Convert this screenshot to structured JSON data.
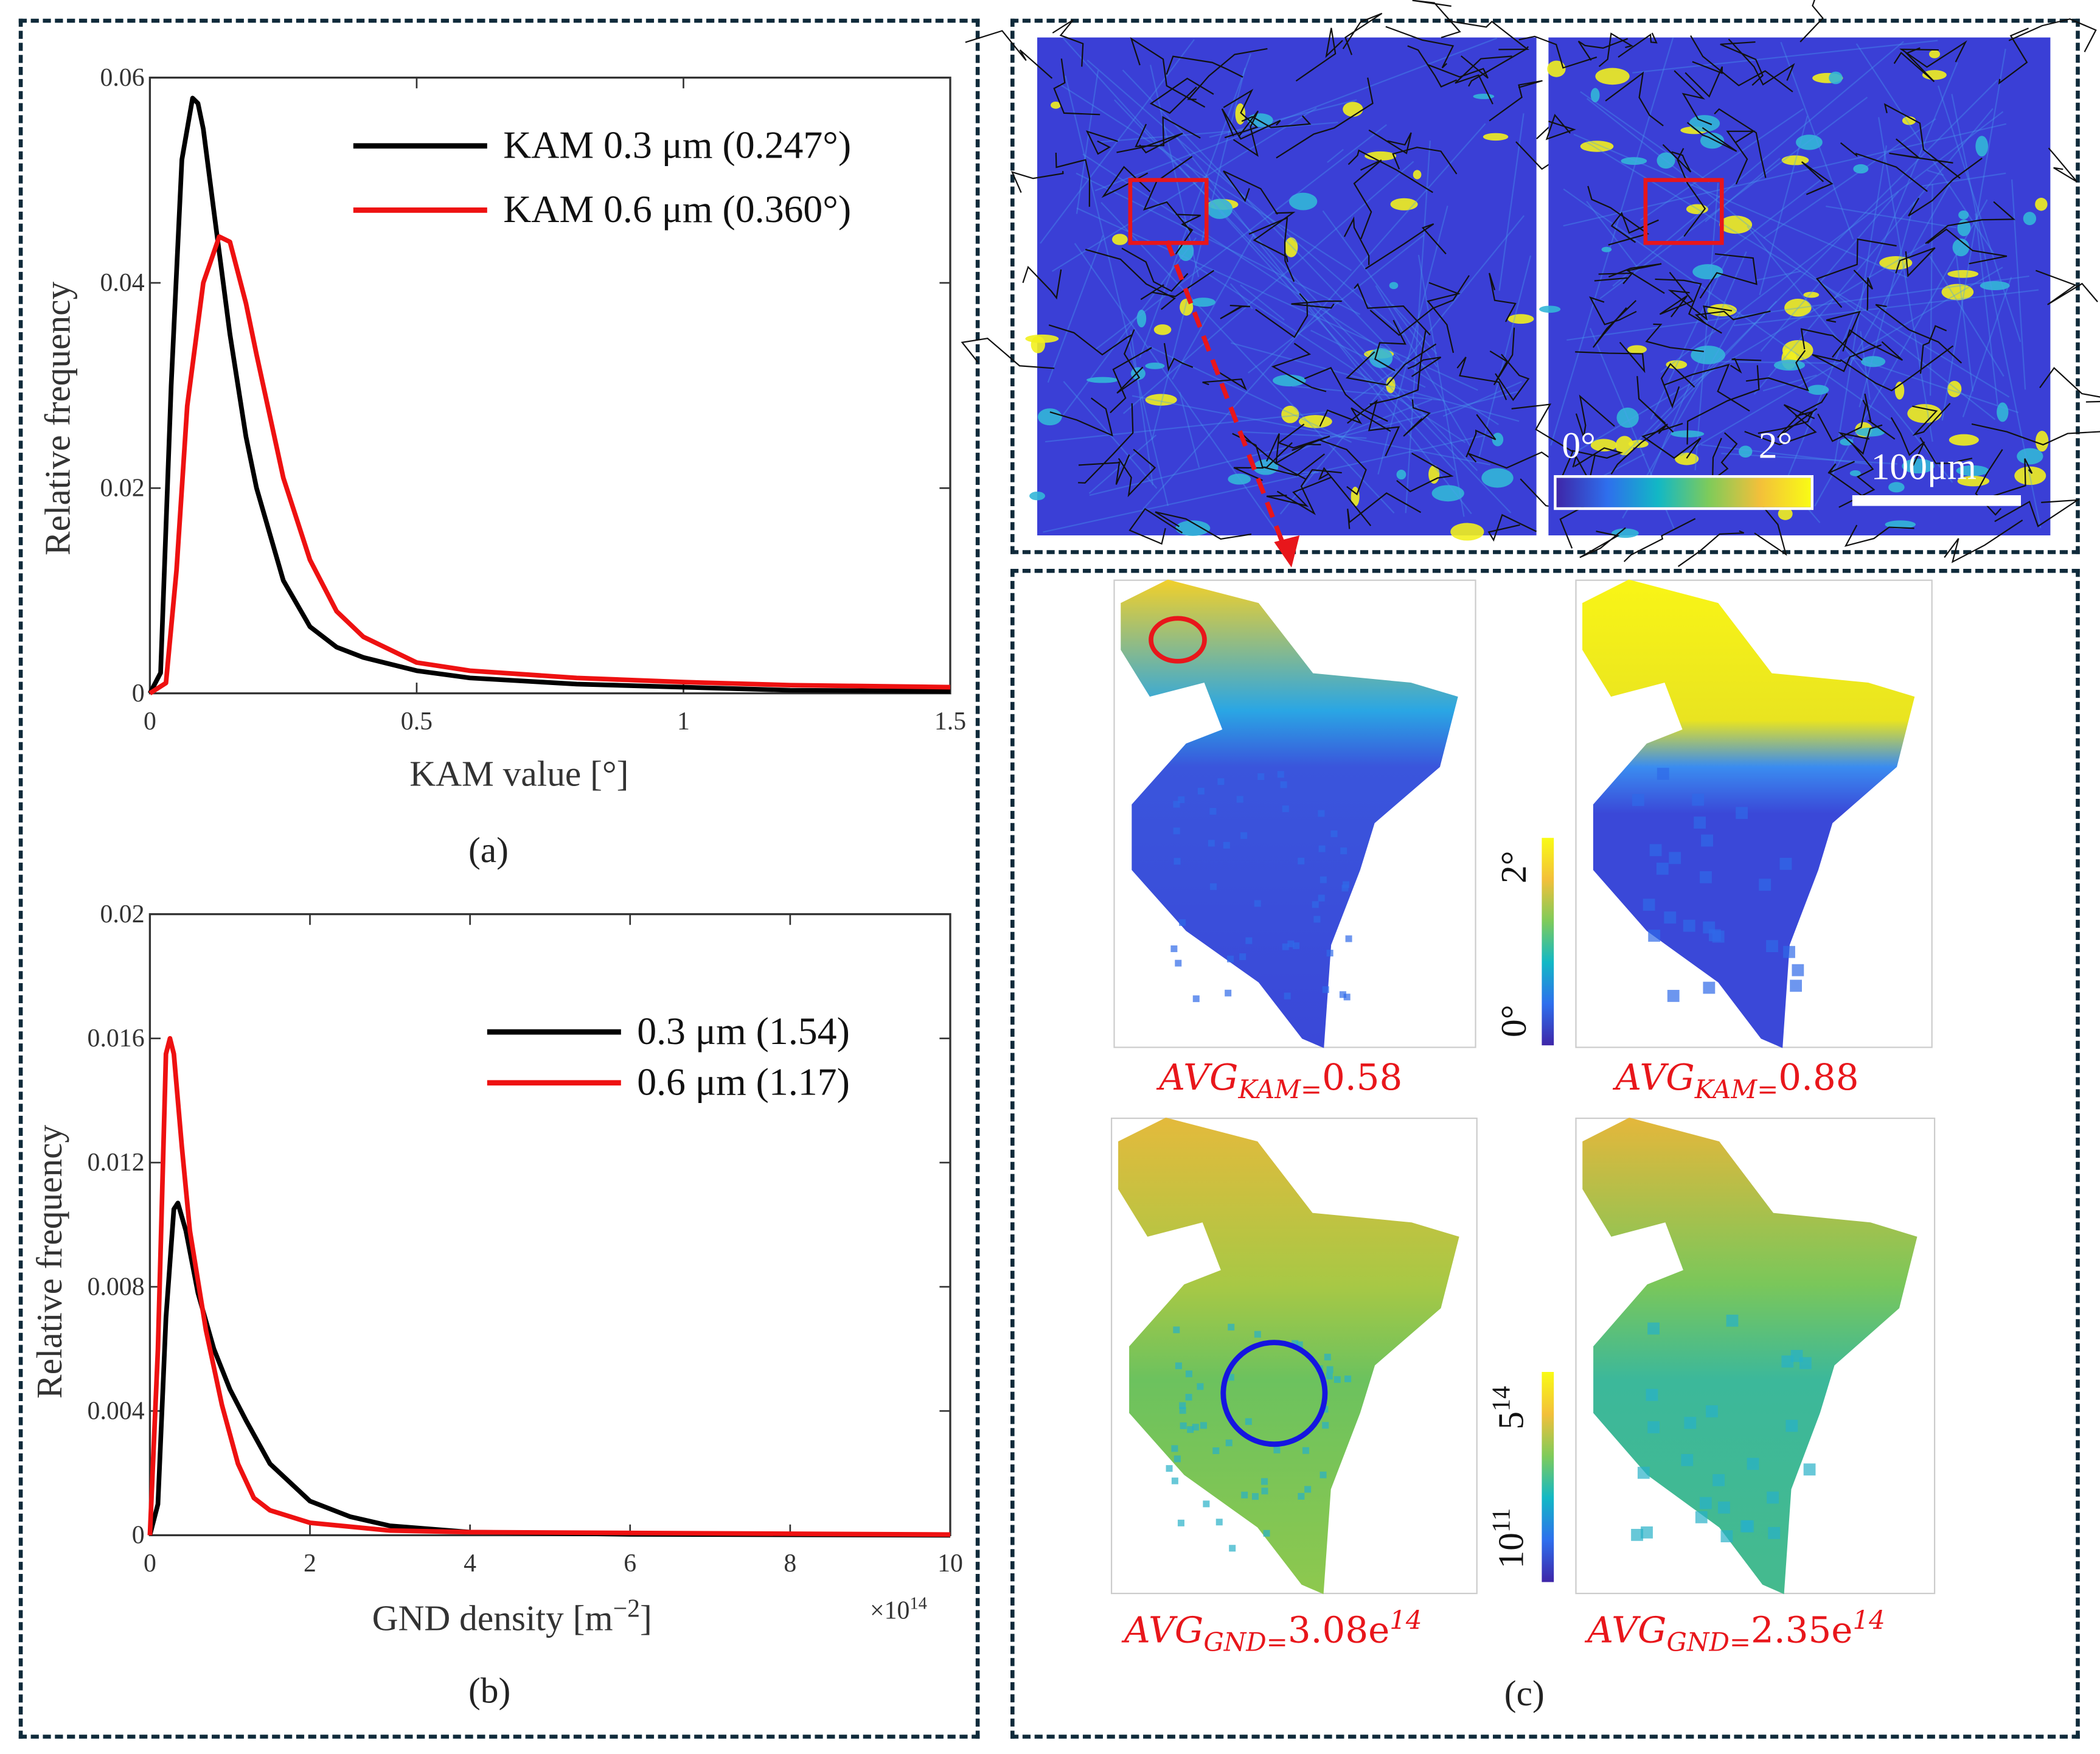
{
  "colors": {
    "kam03": "#000000",
    "kam06": "#ee1111",
    "frame": "#0f2a3a",
    "annotation": "#e8161b",
    "circle_blue": "#1515e0"
  },
  "panel_a": {
    "caption": "(a)"
  },
  "panel_b": {
    "caption": "(b)"
  },
  "panel_c": {
    "caption": "(c)",
    "overview_colorbar": {
      "min_label": "0°",
      "max_label": "2°"
    },
    "scale_bar": "100μm",
    "kam_colorbar": {
      "min_label": "0°",
      "max_label": "2°"
    },
    "gnd_colorbar": {
      "min_base": "10",
      "min_exp": "11",
      "max_base": "5",
      "max_exp": "14"
    },
    "avg_kam_03": {
      "prefix": "AVG",
      "sub": "KAM=",
      "value": "0.58"
    },
    "avg_kam_06": {
      "prefix": "AVG",
      "sub": "KAM=",
      "value": "0.88"
    },
    "avg_gnd_03": {
      "prefix": "AVG",
      "sub": "GND=",
      "value": "3.08e",
      "exp": "14"
    },
    "avg_gnd_06": {
      "prefix": "AVG",
      "sub": "GND=",
      "value": "2.35e",
      "exp": "14"
    }
  },
  "chart_data": [
    {
      "type": "line",
      "title": "",
      "xlabel": "KAM value [°]",
      "ylabel": "Relative frequency",
      "xlim": [
        0,
        1.5
      ],
      "ylim": [
        0,
        0.06
      ],
      "xticks": [
        "0",
        "0.5",
        "1",
        "1.5"
      ],
      "xtick_values": [
        0,
        0.5,
        1,
        1.5
      ],
      "yticks": [
        "0",
        "0.02",
        "0.04",
        "0.06"
      ],
      "ytick_values": [
        0,
        0.02,
        0.04,
        0.06
      ],
      "legend_position": "top-right",
      "series": [
        {
          "name": "KAM 0.3 μm (0.247°)",
          "color": "#000000",
          "x": [
            0,
            0.02,
            0.04,
            0.06,
            0.08,
            0.09,
            0.1,
            0.12,
            0.15,
            0.18,
            0.2,
            0.25,
            0.3,
            0.35,
            0.4,
            0.5,
            0.6,
            0.8,
            1.0,
            1.2,
            1.5
          ],
          "y": [
            0,
            0.002,
            0.03,
            0.052,
            0.058,
            0.0575,
            0.055,
            0.047,
            0.035,
            0.025,
            0.02,
            0.011,
            0.0065,
            0.0045,
            0.0035,
            0.0022,
            0.0015,
            0.0009,
            0.0006,
            0.0003,
            0.0002
          ]
        },
        {
          "name": "KAM 0.6 μm (0.360°)",
          "color": "#ee1111",
          "x": [
            0,
            0.03,
            0.05,
            0.07,
            0.1,
            0.13,
            0.15,
            0.18,
            0.2,
            0.25,
            0.3,
            0.35,
            0.4,
            0.5,
            0.6,
            0.8,
            1.0,
            1.2,
            1.5
          ],
          "y": [
            0,
            0.001,
            0.012,
            0.028,
            0.04,
            0.0445,
            0.044,
            0.038,
            0.033,
            0.021,
            0.013,
            0.008,
            0.0055,
            0.003,
            0.0022,
            0.0015,
            0.0011,
            0.0008,
            0.0006
          ]
        }
      ]
    },
    {
      "type": "line",
      "title": "",
      "xlabel": "GND density [m",
      "xlabel_exp": "−2",
      "xlabel_end": "]",
      "x_multiplier": "×10",
      "x_multiplier_exp": "14",
      "ylabel": "Relative frequency",
      "xlim": [
        0,
        10
      ],
      "ylim": [
        0,
        0.02
      ],
      "xticks": [
        "0",
        "2",
        "4",
        "6",
        "8",
        "10"
      ],
      "xtick_values": [
        0,
        2,
        4,
        6,
        8,
        10
      ],
      "yticks": [
        "0",
        "0.004",
        "0.008",
        "0.012",
        "0.016",
        "0.02"
      ],
      "ytick_values": [
        0,
        0.004,
        0.008,
        0.012,
        0.016,
        0.02
      ],
      "legend_position": "top-right",
      "series": [
        {
          "name": "0.3 μm (1.54)",
          "color": "#000000",
          "x": [
            0,
            0.1,
            0.2,
            0.3,
            0.35,
            0.45,
            0.6,
            0.8,
            1.0,
            1.2,
            1.5,
            2,
            2.5,
            3,
            4,
            6,
            10
          ],
          "y": [
            0,
            0.001,
            0.007,
            0.0105,
            0.0107,
            0.0098,
            0.0078,
            0.006,
            0.0047,
            0.0037,
            0.0023,
            0.0011,
            0.0006,
            0.0003,
            0.0001,
            3e-05,
            0
          ]
        },
        {
          "name": "0.6 μm (1.17)",
          "color": "#ee1111",
          "x": [
            0,
            0.1,
            0.2,
            0.25,
            0.3,
            0.4,
            0.5,
            0.7,
            0.9,
            1.1,
            1.3,
            1.5,
            2,
            3,
            4,
            10
          ],
          "y": [
            0,
            0.006,
            0.0155,
            0.016,
            0.0155,
            0.0125,
            0.0098,
            0.0066,
            0.0042,
            0.0023,
            0.0012,
            0.0008,
            0.0004,
            0.00015,
            0.0001,
            2e-05
          ]
        }
      ]
    }
  ]
}
